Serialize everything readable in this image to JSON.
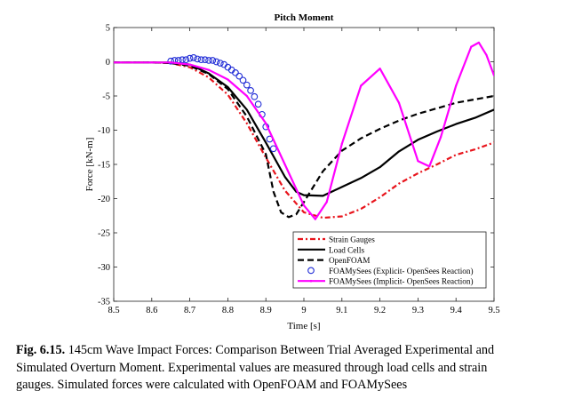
{
  "chart_data": {
    "type": "line",
    "title": "Pitch Moment",
    "xlabel": "Time [s]",
    "ylabel": "Force [kN-m]",
    "xlim": [
      8.5,
      9.5
    ],
    "ylim": [
      -35,
      5
    ],
    "xticks": [
      "8.5",
      "8.6",
      "8.7",
      "8.8",
      "8.9",
      "9",
      "9.1",
      "9.2",
      "9.3",
      "9.4",
      "9.5"
    ],
    "yticks": [
      "5",
      "0",
      "-5",
      "-10",
      "-15",
      "-20",
      "-25",
      "-30",
      "-35"
    ],
    "grid": false,
    "legend_position": "bottom-right",
    "series": [
      {
        "name": "Strain Gauges",
        "color": "#e8141c",
        "style": "dash-dot",
        "x": [
          8.5,
          8.6,
          8.65,
          8.7,
          8.75,
          8.8,
          8.85,
          8.9,
          8.95,
          9.0,
          9.05,
          9.1,
          9.15,
          9.2,
          9.25,
          9.3,
          9.35,
          9.4,
          9.45,
          9.5
        ],
        "y": [
          -0.1,
          -0.1,
          -0.2,
          -0.8,
          -2.3,
          -4.8,
          -9.0,
          -14.0,
          -18.8,
          -22.0,
          -22.8,
          -22.6,
          -21.5,
          -19.8,
          -17.8,
          -16.3,
          -15.0,
          -13.6,
          -12.8,
          -11.8
        ]
      },
      {
        "name": "Load Cells",
        "color": "#000000",
        "style": "solid",
        "x": [
          8.5,
          8.6,
          8.65,
          8.7,
          8.75,
          8.8,
          8.85,
          8.9,
          8.95,
          8.98,
          9.0,
          9.05,
          9.1,
          9.15,
          9.2,
          9.25,
          9.3,
          9.35,
          9.4,
          9.45,
          9.5
        ],
        "y": [
          -0.1,
          -0.1,
          -0.1,
          -0.4,
          -1.7,
          -3.7,
          -7.0,
          -11.8,
          -16.8,
          -19.0,
          -19.5,
          -19.6,
          -18.3,
          -17.0,
          -15.4,
          -13.1,
          -11.4,
          -10.2,
          -9.1,
          -8.2,
          -7.0
        ]
      },
      {
        "name": "OpenFOAM",
        "color": "#000000",
        "style": "dashed",
        "x": [
          8.5,
          8.6,
          8.65,
          8.7,
          8.75,
          8.8,
          8.85,
          8.9,
          8.92,
          8.94,
          8.96,
          8.98,
          9.0,
          9.05,
          9.1,
          9.15,
          9.2,
          9.25,
          9.3,
          9.35,
          9.4,
          9.45,
          9.5
        ],
        "y": [
          -0.1,
          -0.1,
          -0.2,
          -0.6,
          -1.8,
          -4.0,
          -8.0,
          -13.5,
          -19.0,
          -22.0,
          -22.7,
          -22.3,
          -20.5,
          -16.0,
          -13.0,
          -11.2,
          -9.8,
          -8.6,
          -7.6,
          -6.8,
          -6.0,
          -5.5,
          -5.0
        ]
      },
      {
        "name": "FOAMySees (Explicit- OpenSees Reaction)",
        "color": "#1f2bd6",
        "style": "circles",
        "x": [
          8.65,
          8.66,
          8.67,
          8.68,
          8.69,
          8.7,
          8.71,
          8.72,
          8.73,
          8.74,
          8.75,
          8.76,
          8.77,
          8.78,
          8.79,
          8.8,
          8.81,
          8.82,
          8.83,
          8.84,
          8.85,
          8.86,
          8.87,
          8.88,
          8.89,
          8.9,
          8.91,
          8.92
        ],
        "y": [
          0.1,
          0.2,
          0.2,
          0.3,
          0.3,
          0.5,
          0.6,
          0.4,
          0.3,
          0.3,
          0.2,
          0.2,
          0.0,
          -0.2,
          -0.4,
          -0.8,
          -1.2,
          -1.6,
          -2.1,
          -2.7,
          -3.4,
          -4.2,
          -5.1,
          -6.2,
          -7.7,
          -9.5,
          -11.3,
          -12.7
        ]
      },
      {
        "name": "FOAMySees (Implicit- OpenSees Reaction)",
        "color": "#ff00ff",
        "style": "solid-dot",
        "x": [
          8.5,
          8.6,
          8.65,
          8.7,
          8.75,
          8.8,
          8.85,
          8.9,
          8.95,
          9.0,
          9.03,
          9.06,
          9.1,
          9.15,
          9.2,
          9.25,
          9.3,
          9.33,
          9.36,
          9.4,
          9.44,
          9.46,
          9.48,
          9.5
        ],
        "y": [
          -0.1,
          -0.1,
          -0.1,
          -0.4,
          -1.2,
          -2.6,
          -5.0,
          -9.0,
          -15.0,
          -21.0,
          -23.0,
          -20.5,
          -12.0,
          -3.5,
          -1.0,
          -6.0,
          -14.5,
          -15.3,
          -11.0,
          -3.5,
          2.2,
          2.8,
          1.0,
          -2.0
        ]
      }
    ]
  },
  "caption": {
    "label": "Fig. 6.15.",
    "lines": [
      "145cm Wave Impact Forces: Comparison Between Trial Averaged Experimental and",
      "Simulated Overturn Moment.  Experimental values are measured through load cells and strain",
      "gauges. Simulated forces were calculated with OpenFOAM and FOAMySees"
    ]
  }
}
